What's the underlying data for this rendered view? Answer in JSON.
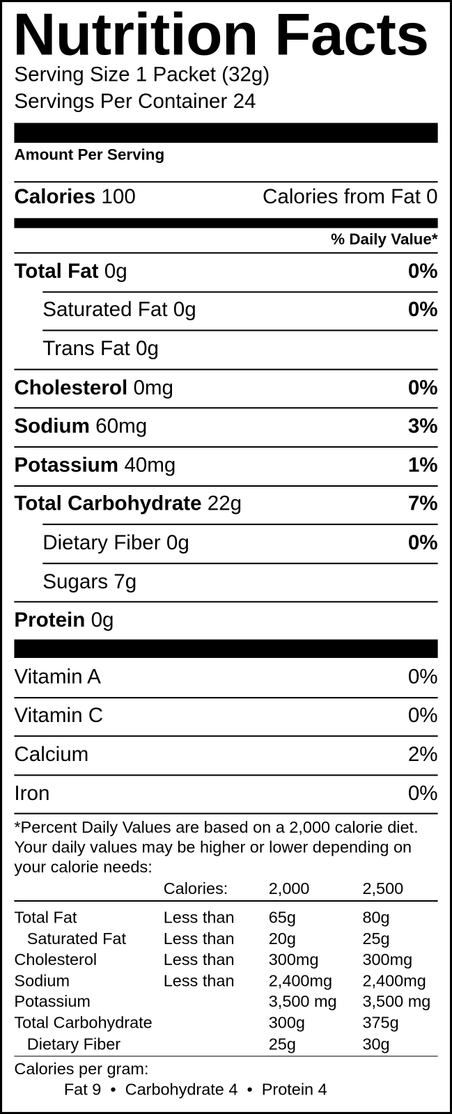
{
  "title": "Nutrition Facts",
  "serving_size": "Serving Size 1 Packet (32g)",
  "servings_per_container": "Servings Per Container 24",
  "amount_per_serving": "Amount Per Serving",
  "calories": {
    "label": "Calories",
    "value": "100",
    "from_fat": "Calories from Fat 0"
  },
  "daily_value_header": "% Daily Value*",
  "nutrients": [
    {
      "name": "Total Fat",
      "amount": "0g",
      "dv": "0%",
      "bold": true,
      "indent": false
    },
    {
      "name": "Saturated Fat",
      "amount": "0g",
      "dv": "0%",
      "bold": false,
      "indent": true
    },
    {
      "name": "Trans Fat",
      "amount": "0g",
      "dv": "",
      "bold": false,
      "indent": true
    },
    {
      "name": "Cholesterol",
      "amount": "0mg",
      "dv": "0%",
      "bold": true,
      "indent": false
    },
    {
      "name": "Sodium",
      "amount": "60mg",
      "dv": "3%",
      "bold": true,
      "indent": false
    },
    {
      "name": "Potassium",
      "amount": "40mg",
      "dv": "1%",
      "bold": true,
      "indent": false
    },
    {
      "name": "Total Carbohydrate",
      "amount": "22g",
      "dv": "7%",
      "bold": true,
      "indent": false
    },
    {
      "name": "Dietary Fiber",
      "amount": "0g",
      "dv": "0%",
      "bold": false,
      "indent": true
    },
    {
      "name": "Sugars",
      "amount": "7g",
      "dv": "",
      "bold": false,
      "indent": true
    },
    {
      "name": "Protein",
      "amount": "0g",
      "dv": "",
      "bold": true,
      "indent": false
    }
  ],
  "vitamins": [
    {
      "name": "Vitamin A",
      "dv": "0%"
    },
    {
      "name": "Vitamin C",
      "dv": "0%"
    },
    {
      "name": "Calcium",
      "dv": "2%"
    },
    {
      "name": "Iron",
      "dv": "0%"
    }
  ],
  "footnote": "*Percent Daily Values are based on a 2,000 calorie diet. Your daily values may be higher or lower depending on your calorie needs:",
  "reference_table": {
    "header": [
      "",
      "Calories:",
      "2,000",
      "2,500"
    ],
    "rows": [
      [
        "Total Fat",
        "Less than",
        "65g",
        "80g"
      ],
      [
        "Saturated Fat",
        "Less than",
        "20g",
        "25g"
      ],
      [
        "Cholesterol",
        "Less than",
        "300mg",
        "300mg"
      ],
      [
        "Sodium",
        "Less than",
        "2,400mg",
        "2,400mg"
      ],
      [
        "Potassium",
        "",
        "3,500 mg",
        "3,500 mg"
      ],
      [
        "Total Carbohydrate",
        "",
        "300g",
        "375g"
      ],
      [
        "Dietary Fiber",
        "",
        "25g",
        "30g"
      ]
    ]
  },
  "calories_per_gram": {
    "label": "Calories per gram:",
    "values": "Fat 9  •  Carbohydrate 4  •  Protein 4"
  }
}
